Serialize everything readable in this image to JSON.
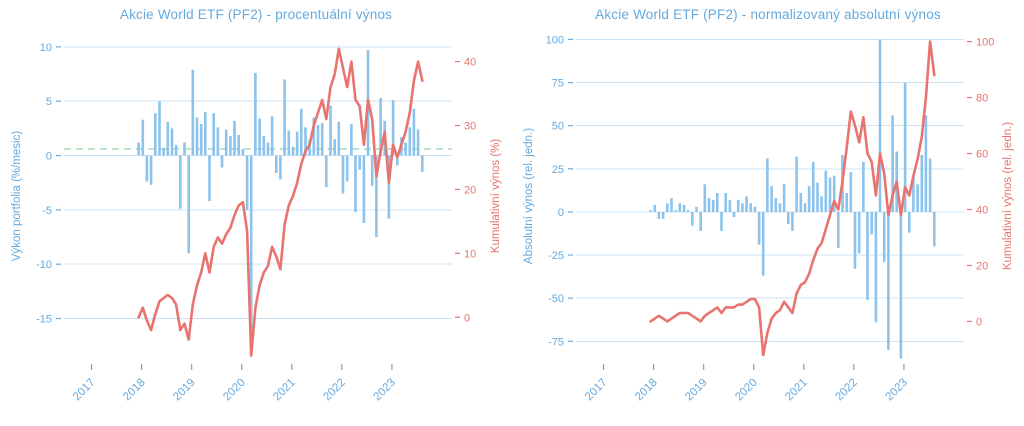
{
  "page": {
    "background": "#ffffff"
  },
  "chart_data": [
    {
      "type": "bar",
      "title": "Akcie World ETF (PF2) - procentuální výnos",
      "x_unit": "month",
      "x_start": 2017.94,
      "x_step": 0.08333,
      "x_domain": [
        2016.45,
        2024.2
      ],
      "x_ticks": [
        2017,
        2018,
        2019,
        2020,
        2021,
        2022,
        2023
      ],
      "left_axis": {
        "label": "Výkon portfolia (%/mesic)",
        "range": [
          -19,
          11
        ],
        "ticks": [
          10,
          5,
          0,
          -5,
          -10,
          -15
        ]
      },
      "right_axis": {
        "label": "Kumulativní výnos (%)",
        "range": [
          -7,
          44
        ],
        "ticks": [
          0,
          10,
          20,
          30,
          40
        ]
      },
      "mean_line": 0.6,
      "grid": true,
      "legend": "none",
      "series": [
        {
          "name": "Výkon portfolia (%/mesic)",
          "type": "bar",
          "axis": "left",
          "values": [
            1.2,
            3.3,
            -2.4,
            -2.7,
            3.9,
            5.0,
            0.7,
            3.1,
            2.5,
            1.0,
            -4.9,
            1.2,
            -9.0,
            7.9,
            3.5,
            2.9,
            4.0,
            -4.2,
            3.9,
            2.6,
            -1.1,
            2.4,
            1.8,
            3.2,
            1.9,
            0.6,
            -5.0,
            -17.5,
            7.6,
            3.4,
            1.8,
            1.2,
            3.6,
            -1.6,
            -2.2,
            7.0,
            2.3,
            0.8,
            2.2,
            4.3,
            2.6,
            1.4,
            3.5,
            2.8,
            3.0,
            -2.9,
            4.6,
            1.5,
            3.1,
            -3.5,
            -2.4,
            2.9,
            -5.2,
            -1.3,
            -6.2,
            9.7,
            -2.8,
            -7.5,
            5.3,
            3.2,
            -5.8,
            5.1,
            -0.9,
            1.7,
            1.2,
            2.6,
            4.3,
            2.4,
            -1.5
          ]
        },
        {
          "name": "Kumulativní výnos (%)",
          "type": "line",
          "axis": "right",
          "values": [
            0.0,
            1.5,
            -0.5,
            -2.0,
            0.5,
            2.5,
            3.0,
            3.5,
            3.0,
            2.0,
            -2.0,
            -1.0,
            -3.5,
            2.0,
            5.0,
            7.0,
            10.0,
            7.0,
            11.0,
            12.5,
            11.5,
            13.0,
            14.0,
            16.0,
            17.5,
            18.0,
            13.5,
            -6.0,
            1.5,
            5.0,
            7.0,
            8.0,
            11.0,
            9.5,
            7.5,
            14.5,
            17.5,
            19.0,
            21.0,
            24.0,
            26.0,
            27.0,
            30.0,
            32.0,
            34.0,
            31.0,
            36.0,
            38.0,
            42.0,
            39.0,
            36.0,
            40.0,
            34.0,
            33.0,
            27.0,
            34.0,
            31.0,
            22.0,
            26.0,
            29.0,
            21.0,
            27.0,
            25.0,
            27.0,
            29.0,
            32.0,
            37.0,
            40.0,
            37.0
          ]
        }
      ],
      "colors": {
        "bar": "#8cc3ec",
        "line": "#e8736f",
        "blue_text": "#64aadf",
        "red_text": "#e8736f",
        "grid": "#cde3f4",
        "mean": "#b5dfc0"
      }
    },
    {
      "type": "bar",
      "title": "Akcie World ETF (PF2) - normalizovaný absolutní výnos",
      "x_unit": "month",
      "x_start": 2017.94,
      "x_step": 0.08333,
      "x_domain": [
        2016.45,
        2024.2
      ],
      "x_ticks": [
        2017,
        2018,
        2019,
        2020,
        2021,
        2022,
        2023
      ],
      "left_axis": {
        "label": "Absolutní výnos (rel. jedn.)",
        "range": [
          -87,
          102
        ],
        "ticks": [
          100,
          75,
          50,
          25,
          0,
          -25,
          -50,
          -75
        ]
      },
      "right_axis": {
        "label": "Kumulativní výnos (rel. jedn.)",
        "range": [
          -14.5,
          102
        ],
        "ticks": [
          100,
          80,
          60,
          40,
          20,
          0
        ]
      },
      "mean_line": null,
      "grid": true,
      "legend": "none",
      "series": [
        {
          "name": "Absolutní výnos (rel. jedn.)",
          "type": "bar",
          "axis": "left",
          "values": [
            1,
            4,
            -4,
            -4,
            5,
            8,
            1,
            5,
            4,
            1,
            -8,
            3,
            -11,
            16,
            8,
            7,
            11,
            -11,
            11,
            7,
            -3,
            7,
            5,
            9,
            5,
            3,
            -19,
            -37,
            31,
            15,
            8,
            5,
            16,
            -7,
            -11,
            32,
            11,
            5,
            15,
            29,
            17,
            9,
            24,
            20,
            21,
            -21,
            33,
            11,
            23,
            -33,
            -24,
            29,
            -51,
            -13,
            -64,
            100,
            -29,
            -80,
            56,
            35,
            -85,
            75,
            -12,
            21,
            16,
            33,
            56,
            31,
            -20
          ]
        },
        {
          "name": "Kumulativní výnos (rel. jedn.)",
          "type": "line",
          "axis": "right",
          "values": [
            0,
            1,
            2,
            1,
            0,
            1,
            2,
            3,
            3,
            3,
            2,
            1,
            0,
            2,
            3,
            4,
            5,
            3,
            5,
            5,
            5,
            6,
            6,
            7,
            8,
            8,
            5,
            -12,
            -4,
            1,
            3,
            4,
            7,
            5,
            3,
            10,
            13,
            14,
            17,
            22,
            26,
            28,
            33,
            38,
            43,
            40,
            50,
            62,
            75,
            70,
            64,
            73,
            60,
            57,
            45,
            60,
            53,
            38,
            45,
            50,
            38,
            48,
            45,
            52,
            58,
            66,
            80,
            100,
            88
          ]
        }
      ],
      "colors": {
        "bar": "#8cc3ec",
        "line": "#e8736f",
        "blue_text": "#64aadf",
        "red_text": "#e8736f",
        "grid": "#cde3f4",
        "mean": "#b5dfc0"
      }
    }
  ]
}
